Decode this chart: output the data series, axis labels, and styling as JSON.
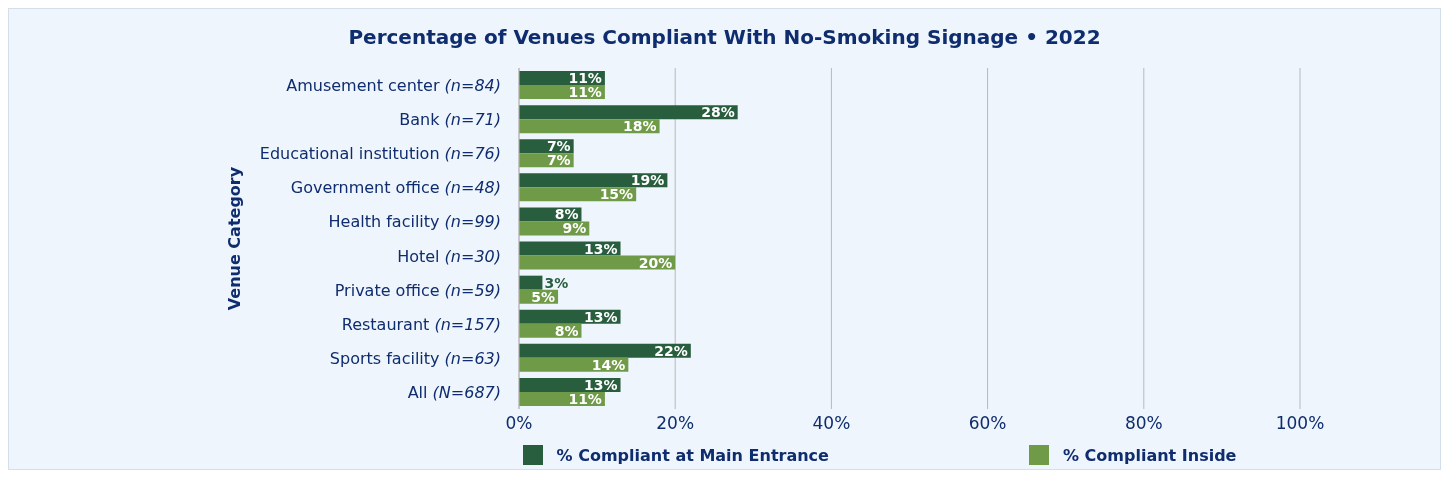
{
  "chart_data": {
    "type": "bar",
    "orientation": "horizontal",
    "title": "Percentage of Venues Compliant With No-Smoking Signage • 2022",
    "ylabel": "Venue Category",
    "categories": [
      "Amusement center (n=84)",
      "Bank (n=71)",
      "Educational institution (n=76)",
      "Government office (n=48)",
      "Health facility (n=99)",
      "Hotel (n=30)",
      "Private office (n=59)",
      "Restaurant (n=157)",
      "Sports facility (n=63)",
      "All (N=687)"
    ],
    "series": [
      {
        "name": "% Compliant at Main Entrance",
        "color": "#285e3e",
        "values": [
          11,
          28,
          7,
          19,
          8,
          13,
          3,
          13,
          22,
          13
        ],
        "value_labels": [
          "11%",
          "28%",
          "7%",
          "19%",
          "8%",
          "13%",
          "3%",
          "13%",
          "22%",
          "13%"
        ]
      },
      {
        "name": "% Compliant Inside",
        "color": "#6f9a47",
        "values": [
          11,
          18,
          7,
          15,
          9,
          20,
          5,
          8,
          14,
          11
        ],
        "value_labels": [
          "11%",
          "18%",
          "7%",
          "15%",
          "9%",
          "20%",
          "5%",
          "8%",
          "14%",
          "11%"
        ]
      }
    ],
    "xlim": [
      0,
      100
    ],
    "xticks": [
      {
        "value": 0,
        "label": "0%"
      },
      {
        "value": 20,
        "label": "20%"
      },
      {
        "value": 40,
        "label": "40%"
      },
      {
        "value": 60,
        "label": "60%"
      },
      {
        "value": 80,
        "label": "80%"
      },
      {
        "value": 100,
        "label": "100%"
      }
    ],
    "grid": "x",
    "legend": "bottom"
  }
}
